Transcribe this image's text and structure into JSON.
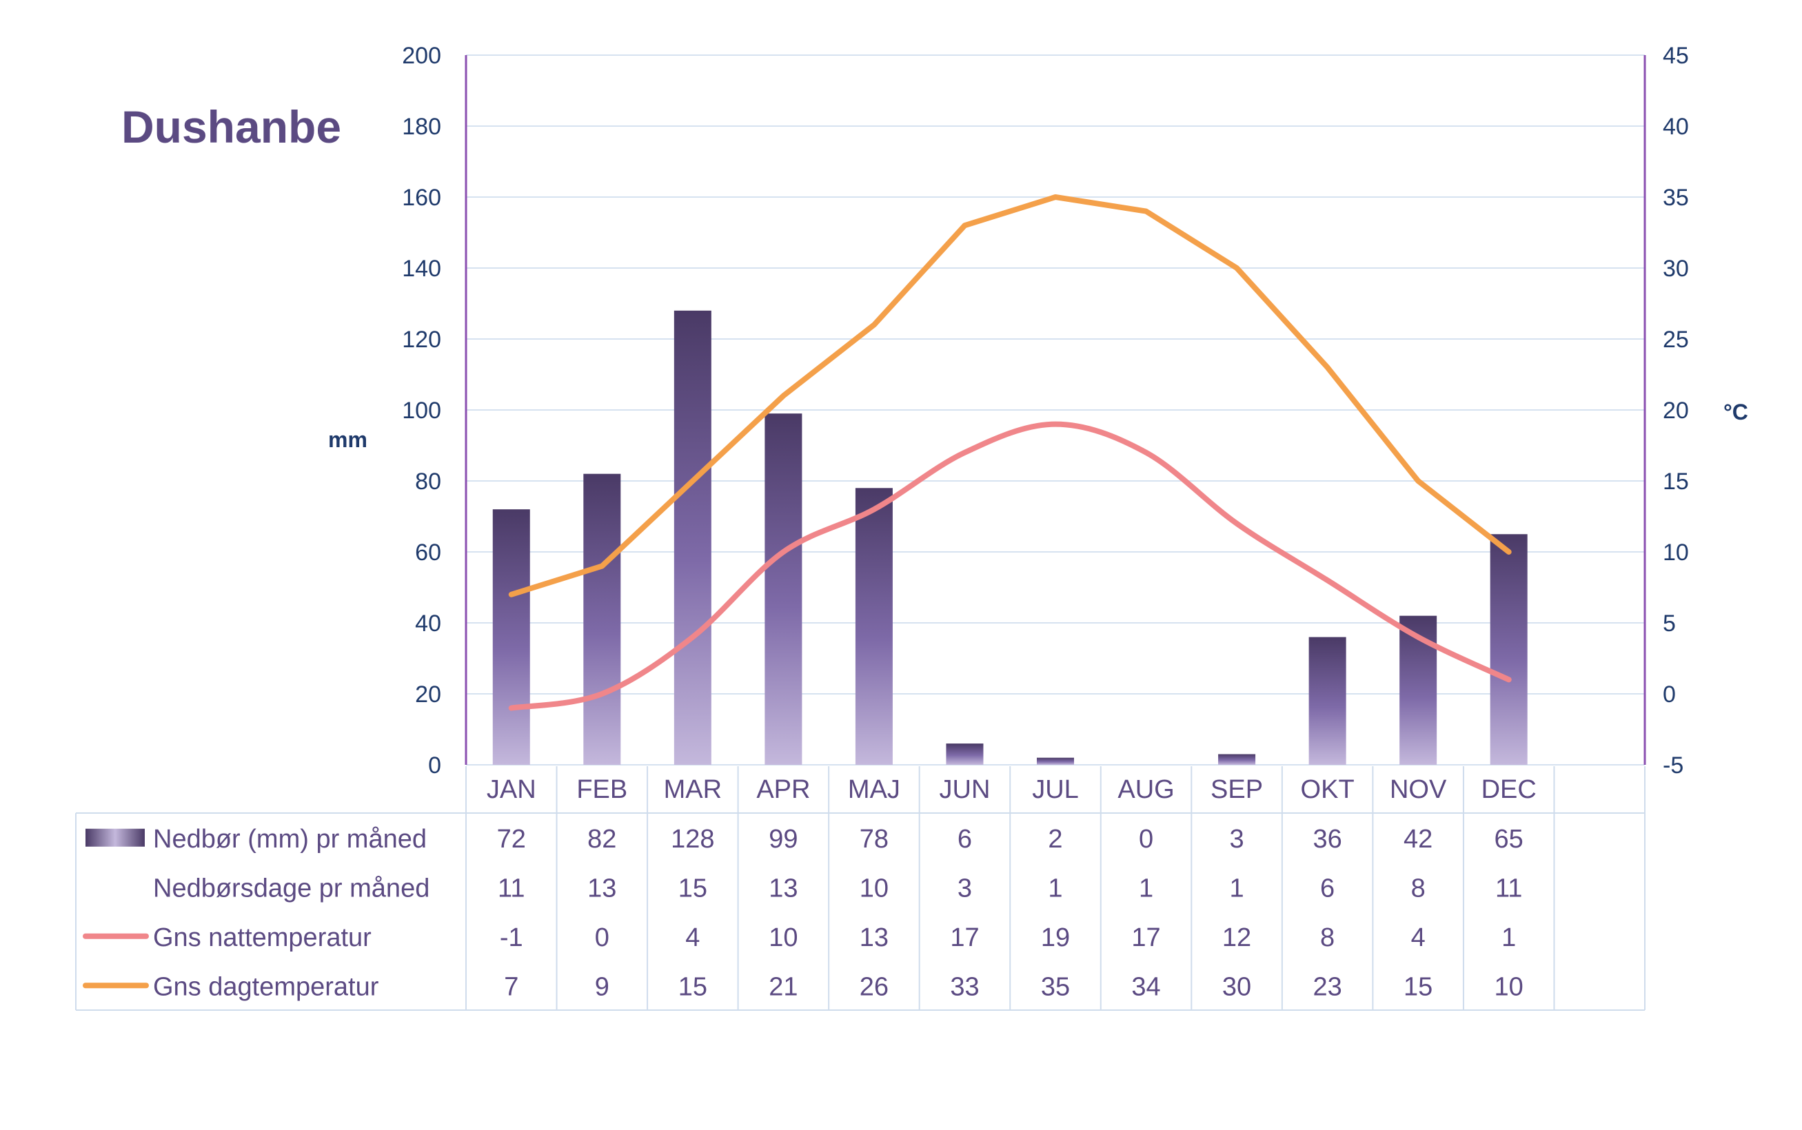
{
  "chart_data": {
    "type": "bar+line",
    "title": "Dushanbe",
    "categories": [
      "JAN",
      "FEB",
      "MAR",
      "APR",
      "MAJ",
      "JUN",
      "JUL",
      "AUG",
      "SEP",
      "OKT",
      "NOV",
      "DEC"
    ],
    "y_left": {
      "label": "mm",
      "range": [
        0,
        200
      ],
      "ticks": [
        0,
        20,
        40,
        60,
        80,
        100,
        120,
        140,
        160,
        180,
        200
      ]
    },
    "y_right": {
      "label": "°C",
      "range": [
        -5,
        45
      ],
      "ticks": [
        -5,
        0,
        5,
        10,
        15,
        20,
        25,
        30,
        35,
        40,
        45
      ]
    },
    "series": [
      {
        "name": "Nedbør (mm) pr måned",
        "type": "bar",
        "axis": "left",
        "values": [
          72,
          82,
          128,
          99,
          78,
          6,
          2,
          0,
          3,
          36,
          42,
          65
        ]
      },
      {
        "name": "Nedbørsdage pr måned",
        "type": "table-only",
        "values": [
          11,
          13,
          15,
          13,
          10,
          3,
          1,
          1,
          1,
          6,
          8,
          11
        ]
      },
      {
        "name": "Gns nattemperatur",
        "type": "line",
        "axis": "right",
        "values": [
          -1,
          0,
          4,
          10,
          13,
          17,
          19,
          17,
          12,
          8,
          4,
          1
        ]
      },
      {
        "name": "Gns dagtemperatur",
        "type": "line",
        "axis": "right",
        "values": [
          7,
          9,
          15,
          21,
          26,
          33,
          35,
          34,
          30,
          23,
          15,
          10
        ]
      }
    ],
    "grid": true,
    "legend": "data-table-below"
  },
  "colors": {
    "bar_top": "#4a3a66",
    "bar_mid": "#7e6aa8",
    "bar_bottom": "#c4b8dc",
    "night_line": "#f0868a",
    "day_line": "#f4a04a",
    "axis_text": "#1f3a6b",
    "axis_line": "#8a4fb0",
    "grid": "#d6e2f0",
    "table_text": "#5b4a82",
    "table_border": "#cfdcec",
    "title": "#5b4a82"
  }
}
